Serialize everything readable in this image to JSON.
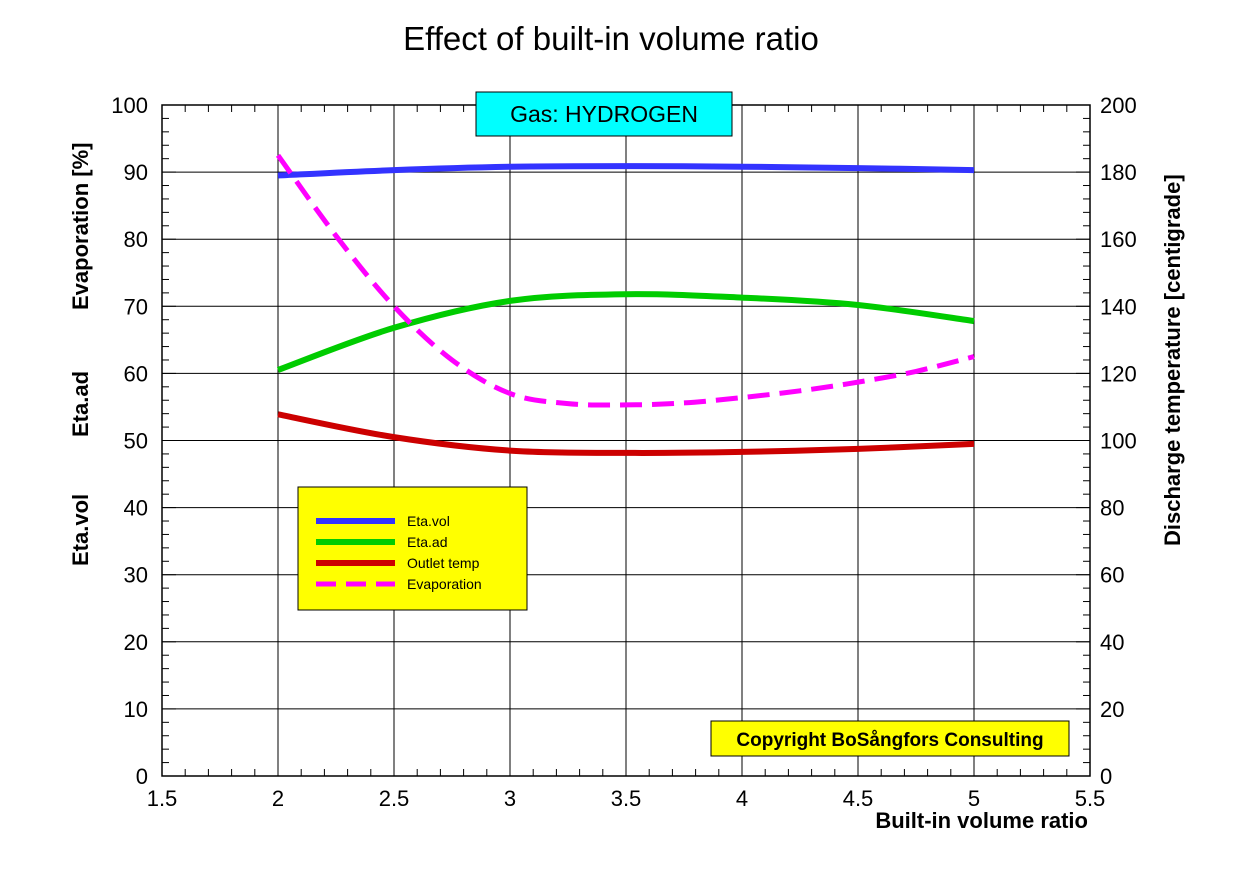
{
  "chart_data": {
    "type": "line",
    "title": "Effect of built-in volume ratio",
    "xlabel": "Built-in volume ratio",
    "ylabel_left": [
      "Evaporation  [%]",
      "Eta.ad",
      "Eta.vol"
    ],
    "ylabel_right": "Discharge temperature [centigrade]",
    "xlim": [
      1.5,
      5.5
    ],
    "ylim_left": [
      0,
      100
    ],
    "ylim_right": [
      0,
      200
    ],
    "x_ticks": [
      "1.5",
      "2",
      "2.5",
      "3",
      "3.5",
      "4",
      "4.5",
      "5",
      "5.5"
    ],
    "y_ticks_left": [
      "0",
      "10",
      "20",
      "30",
      "40",
      "50",
      "60",
      "70",
      "80",
      "90",
      "100"
    ],
    "y_ticks_right": [
      "0",
      "20",
      "40",
      "60",
      "80",
      "100",
      "120",
      "140",
      "160",
      "180",
      "200"
    ],
    "grid": true,
    "series": [
      {
        "name": "Eta.vol",
        "axis": "left",
        "color": "#3333ff",
        "dash": false,
        "x": [
          2.0,
          2.5,
          3.0,
          3.5,
          4.0,
          4.5,
          5.0
        ],
        "y": [
          89.5,
          90.3,
          90.8,
          90.9,
          90.8,
          90.6,
          90.3
        ]
      },
      {
        "name": "Eta.ad",
        "axis": "left",
        "color": "#00cc00",
        "dash": false,
        "x": [
          2.0,
          2.5,
          3.0,
          3.5,
          4.0,
          4.5,
          5.0
        ],
        "y": [
          60.5,
          66.8,
          70.8,
          71.8,
          71.3,
          70.2,
          67.8
        ]
      },
      {
        "name": "Outlet temp",
        "axis": "right",
        "color": "#cc0000",
        "dash": false,
        "x": [
          2.0,
          2.5,
          3.0,
          3.5,
          4.0,
          4.5,
          5.0
        ],
        "y": [
          107.8,
          101.0,
          97.0,
          96.3,
          96.6,
          97.5,
          99.0
        ]
      },
      {
        "name": "Evaporation",
        "axis": "left",
        "color": "#ff00ff",
        "dash": true,
        "x": [
          2.0,
          2.25,
          2.5,
          2.75,
          3.0,
          3.25,
          3.5,
          3.75,
          4.0,
          4.25,
          4.5,
          4.75,
          5.0
        ],
        "y": [
          92.5,
          80.5,
          70.0,
          62.0,
          57.0,
          55.5,
          55.3,
          55.6,
          56.4,
          57.4,
          58.7,
          60.3,
          62.5
        ]
      }
    ],
    "legend_position": "left-middle"
  },
  "annotations": {
    "gas": "Gas: HYDROGEN",
    "copyright": "Copyright BoSångfors Consulting"
  }
}
